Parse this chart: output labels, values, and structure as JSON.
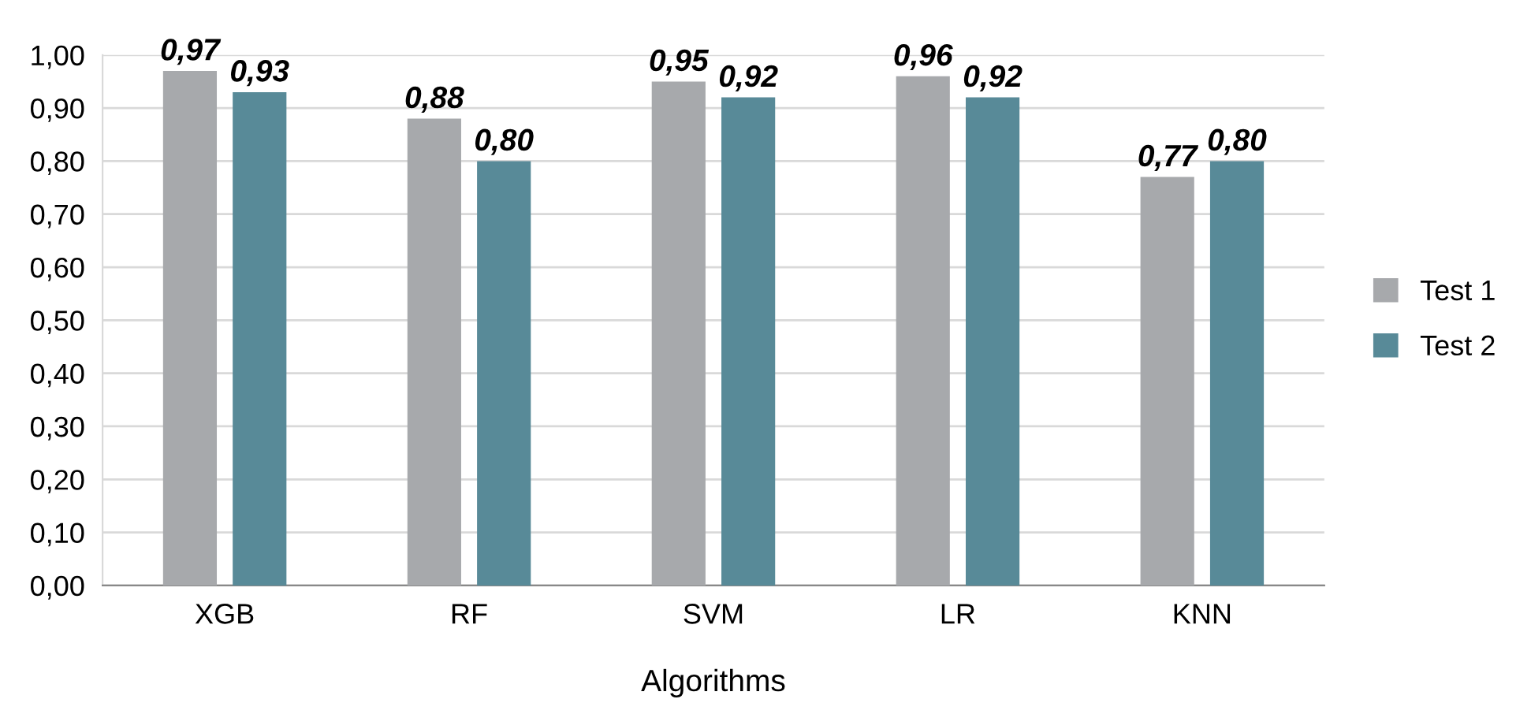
{
  "chart_data": {
    "type": "bar",
    "xlabel": "Algorithms",
    "categories": [
      "XGB",
      "RF",
      "SVM",
      "LR",
      "KNN"
    ],
    "series": [
      {
        "name": "Test 1",
        "color": "#a7a9ac",
        "values": [
          0.97,
          0.88,
          0.95,
          0.96,
          0.77
        ],
        "value_labels": [
          "0,97",
          "0,88",
          "0,95",
          "0,96",
          "0,77"
        ]
      },
      {
        "name": "Test 2",
        "color": "#588a98",
        "values": [
          0.93,
          0.8,
          0.92,
          0.92,
          0.8
        ],
        "value_labels": [
          "0,93",
          "0,80",
          "0,92",
          "0,92",
          "0,80"
        ]
      }
    ],
    "ylim": [
      0,
      1.0
    ],
    "yticks": [
      {
        "value": 0,
        "label": "0,00"
      },
      {
        "value": 0.1,
        "label": "0,10"
      },
      {
        "value": 0.2,
        "label": "0,20"
      },
      {
        "value": 0.3,
        "label": "0,30"
      },
      {
        "value": 0.4,
        "label": "0,40"
      },
      {
        "value": 0.5,
        "label": "0,50"
      },
      {
        "value": 0.6,
        "label": "0,60"
      },
      {
        "value": 0.7,
        "label": "0,70"
      },
      {
        "value": 0.8,
        "label": "0,80"
      },
      {
        "value": 0.9,
        "label": "0,90"
      },
      {
        "value": 1.0,
        "label": "1,00"
      }
    ],
    "grid": "y",
    "legend": "right"
  }
}
